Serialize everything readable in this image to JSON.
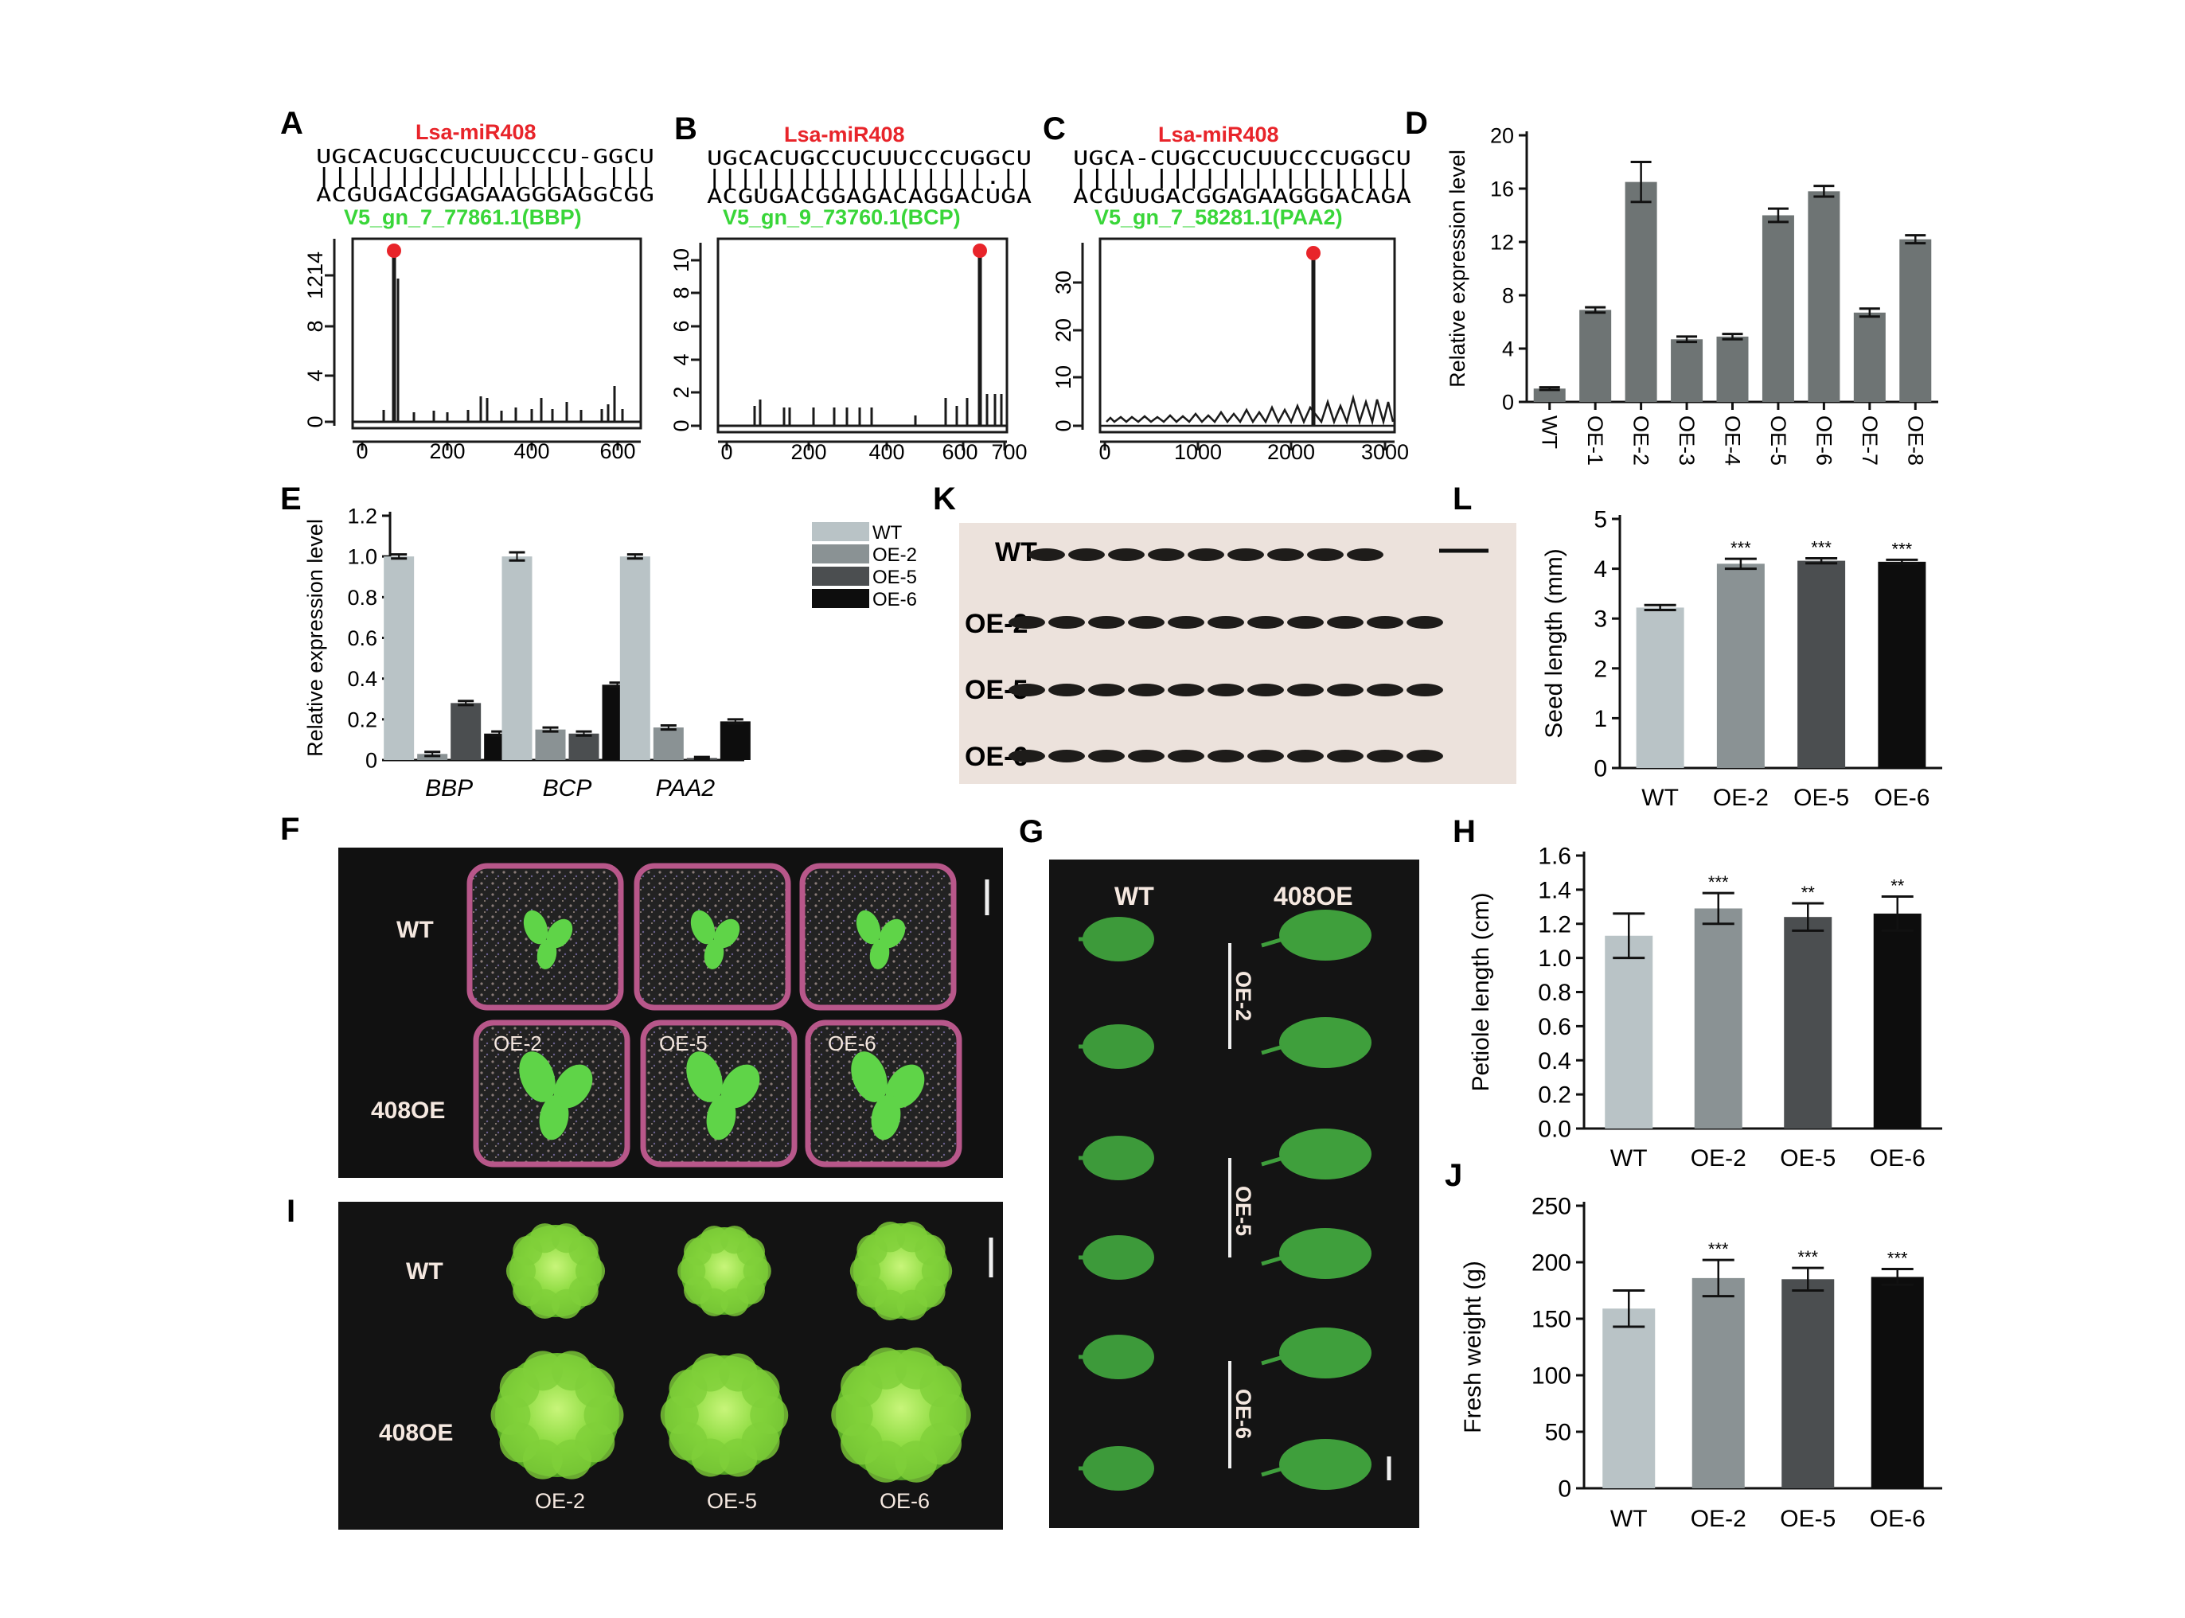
{
  "panels": {
    "A": {
      "letter": "A",
      "mirna": "Lsa-miR408",
      "seq_top": "UGCACUGCCUCUUCCCU-GGCU",
      "seq_mid": "||||||||||||||||| |||",
      "seq_bottom": "ACGUGACGGAGAAGGGAGGCGG",
      "target": "V5_gn_7_77861.1(BBP)",
      "xticks": [
        "0",
        "200",
        "400",
        "600"
      ],
      "yticks": [
        "0",
        "4",
        "8",
        "1214"
      ]
    },
    "B": {
      "letter": "B",
      "mirna": "Lsa-miR408",
      "seq_top": "UGCACUGCCUCUUCCCUGGCU",
      "seq_mid": "||||||||||||||||||.||",
      "seq_bottom": "ACGUGACGGAGACAGGACUGA",
      "target": "V5_gn_9_73760.1(BCP)",
      "xticks": [
        "0",
        "200",
        "400",
        "600",
        "700"
      ],
      "yticks": [
        "0",
        "2",
        "4",
        "6",
        "8",
        "10"
      ]
    },
    "C": {
      "letter": "C",
      "mirna": "Lsa-miR408",
      "seq_top": "UGCA-CUGCCUCUUCCCUGGCU",
      "seq_mid": "|||| ||||||||||||||||",
      "seq_bottom": "ACGUUGACGGAGAAGGGACAGA",
      "target": "V5_gn_7_58281.1(PAA2)",
      "xticks": [
        "0",
        "1000",
        "2000",
        "3000"
      ],
      "yticks": [
        "0",
        "10",
        "20",
        "30"
      ]
    },
    "F": {
      "letter": "F",
      "row1": "WT",
      "row2": "408OE",
      "lines": [
        "OE-2",
        "OE-5",
        "OE-6"
      ]
    },
    "G": {
      "letter": "G",
      "col1": "WT",
      "col2": "408OE",
      "lines": [
        "OE-2",
        "OE-5",
        "OE-6"
      ]
    },
    "I": {
      "letter": "I",
      "row1": "WT",
      "row2": "408OE",
      "lines": [
        "OE-2",
        "OE-5",
        "OE-6"
      ]
    },
    "K": {
      "letter": "K",
      "rows": [
        "WT",
        "OE-2",
        "OE-5",
        "OE-6"
      ]
    }
  },
  "chart_data": [
    {
      "id": "D",
      "type": "bar",
      "ylabel": "Relative expression level",
      "ylim": [
        0,
        20
      ],
      "yticks": [
        "0",
        "4",
        "8",
        "12",
        "16",
        "20"
      ],
      "categories": [
        "WT",
        "OE-1",
        "OE-2",
        "OE-3",
        "OE-4",
        "OE-5",
        "OE-6",
        "OE-7",
        "OE-8"
      ],
      "values": [
        1.0,
        6.9,
        16.5,
        4.7,
        4.9,
        14.0,
        15.8,
        6.7,
        12.2
      ],
      "errors": [
        0.1,
        0.2,
        1.5,
        0.2,
        0.2,
        0.5,
        0.4,
        0.3,
        0.3
      ]
    },
    {
      "id": "E",
      "type": "bar",
      "ylabel": "Relative expression level",
      "ylim": [
        0,
        1.2
      ],
      "yticks": [
        "0",
        "0.2",
        "0.4",
        "0.6",
        "0.8",
        "1.0",
        "1.2"
      ],
      "categories": [
        "BBP",
        "BCP",
        "PAA2"
      ],
      "series": [
        {
          "name": "WT",
          "values": [
            1.0,
            1.0,
            1.0
          ],
          "errors": [
            0.01,
            0.02,
            0.01
          ]
        },
        {
          "name": "OE-2",
          "values": [
            0.03,
            0.15,
            0.16
          ],
          "errors": [
            0.01,
            0.01,
            0.01
          ]
        },
        {
          "name": "OE-5",
          "values": [
            0.28,
            0.13,
            0.01
          ],
          "errors": [
            0.01,
            0.01,
            0.005
          ]
        },
        {
          "name": "OE-6",
          "values": [
            0.13,
            0.37,
            0.19
          ],
          "errors": [
            0.01,
            0.01,
            0.01
          ]
        }
      ]
    },
    {
      "id": "L",
      "type": "bar",
      "ylabel": "Seed length (mm)",
      "ylim": [
        0,
        5
      ],
      "yticks": [
        "0",
        "1",
        "2",
        "3",
        "4",
        "5"
      ],
      "categories": [
        "WT",
        "OE-2",
        "OE-5",
        "OE-6"
      ],
      "values": [
        3.22,
        4.1,
        4.16,
        4.14
      ],
      "errors": [
        0.05,
        0.1,
        0.05,
        0.04
      ],
      "significance": [
        "",
        "***",
        "***",
        "***"
      ]
    },
    {
      "id": "H",
      "type": "bar",
      "ylabel": "Petiole length (cm)",
      "ylim": [
        0,
        1.6
      ],
      "yticks": [
        "0.0",
        "0.2",
        "0.4",
        "0.6",
        "0.8",
        "1.0",
        "1.2",
        "1.4",
        "1.6"
      ],
      "categories": [
        "WT",
        "OE-2",
        "OE-5",
        "OE-6"
      ],
      "values": [
        1.13,
        1.29,
        1.24,
        1.26
      ],
      "errors": [
        0.13,
        0.09,
        0.08,
        0.1
      ],
      "significance": [
        "",
        "***",
        "**",
        "**"
      ]
    },
    {
      "id": "J",
      "type": "bar",
      "ylabel": "Fresh weight (g)",
      "ylim": [
        0,
        250
      ],
      "yticks": [
        "0",
        "50",
        "100",
        "150",
        "200",
        "250"
      ],
      "categories": [
        "WT",
        "OE-2",
        "OE-5",
        "OE-6"
      ],
      "values": [
        159,
        186,
        185,
        187
      ],
      "errors": [
        16,
        16,
        10,
        7
      ],
      "significance": [
        "",
        "***",
        "***",
        "***"
      ]
    }
  ],
  "colors": {
    "mirna_red": "#e8242a",
    "target_green": "#39d639",
    "bar_gray": "#6e7474",
    "wt": "#b9c3c6",
    "oe2": "#8a9294",
    "oe5": "#4b4e50",
    "oe6": "#0d0d0d",
    "leaf": "#5fd448",
    "pot": "#b8578a",
    "photo_dark": "#141414"
  }
}
